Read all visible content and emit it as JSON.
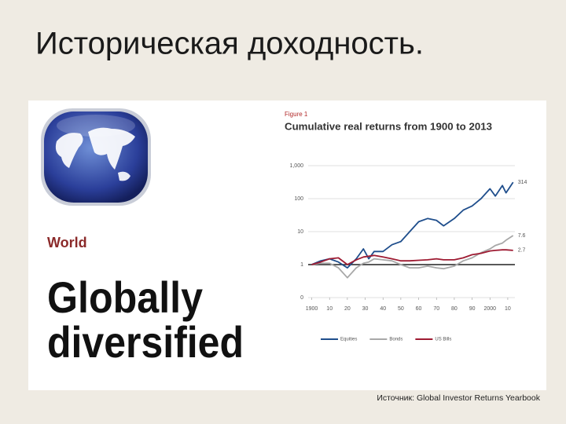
{
  "slide_title": "Историческая доходность.",
  "source": "Источник: Global Investor Returns Yearbook",
  "panel": {
    "region": "World",
    "lines": [
      "Globally",
      "diversified"
    ]
  },
  "chart_data": {
    "type": "line",
    "figure_label": "Figure 1",
    "title": "Cumulative real returns from 1900 to 2013",
    "log_scale": true,
    "grid": true,
    "legend": "bottom",
    "xlim": [
      1898,
      2014
    ],
    "xticks": [
      {
        "value": 1900,
        "label": "1900"
      },
      {
        "value": 1910,
        "label": "10"
      },
      {
        "value": 1920,
        "label": "20"
      },
      {
        "value": 1930,
        "label": "30"
      },
      {
        "value": 1940,
        "label": "40"
      },
      {
        "value": 1950,
        "label": "50"
      },
      {
        "value": 1960,
        "label": "60"
      },
      {
        "value": 1970,
        "label": "70"
      },
      {
        "value": 1980,
        "label": "80"
      },
      {
        "value": 1990,
        "label": "90"
      },
      {
        "value": 2000,
        "label": "2000"
      },
      {
        "value": 2010,
        "label": "10"
      }
    ],
    "ylim": [
      0.1,
      1000
    ],
    "yticks": [
      {
        "value": 0.1,
        "label": "0"
      },
      1,
      10,
      100,
      {
        "value": 1000,
        "label": "1,000"
      }
    ],
    "x": [
      1900,
      1905,
      1910,
      1915,
      1920,
      1925,
      1929,
      1932,
      1935,
      1940,
      1945,
      1950,
      1955,
      1960,
      1965,
      1970,
      1974,
      1980,
      1985,
      1990,
      1995,
      2000,
      2003,
      2007,
      2009,
      2013
    ],
    "series": [
      {
        "name": "Equities",
        "color": "#1f4e8c",
        "values": [
          1,
          1.3,
          1.5,
          1.2,
          0.8,
          1.5,
          3,
          1.5,
          2.5,
          2.5,
          4,
          5,
          10,
          20,
          25,
          22,
          15,
          25,
          45,
          60,
          100,
          200,
          120,
          250,
          150,
          314
        ],
        "value_labels": [
          null,
          null,
          null,
          null,
          null,
          null,
          null,
          null,
          null,
          null,
          null,
          null,
          null,
          null,
          null,
          null,
          null,
          null,
          null,
          null,
          null,
          null,
          null,
          null,
          null,
          "314"
        ]
      },
      {
        "name": "Bonds",
        "color": "#a8a8a8",
        "values": [
          1,
          1.1,
          1.1,
          0.8,
          0.4,
          0.8,
          1.1,
          1.2,
          1.5,
          1.4,
          1.3,
          1.0,
          0.8,
          0.8,
          0.9,
          0.8,
          0.75,
          0.9,
          1.3,
          1.6,
          2.3,
          3,
          3.8,
          4.5,
          5.5,
          7.6
        ],
        "value_labels": [
          null,
          null,
          null,
          null,
          null,
          null,
          null,
          null,
          null,
          null,
          null,
          null,
          null,
          null,
          null,
          null,
          null,
          null,
          null,
          null,
          null,
          null,
          null,
          null,
          null,
          "7.6"
        ]
      },
      {
        "name": "US Bills",
        "color": "#9e1b32",
        "values": [
          1,
          1.2,
          1.5,
          1.6,
          1.0,
          1.4,
          1.7,
          1.8,
          1.9,
          1.7,
          1.5,
          1.3,
          1.3,
          1.35,
          1.4,
          1.5,
          1.4,
          1.4,
          1.6,
          2.0,
          2.2,
          2.6,
          2.7,
          2.8,
          2.8,
          2.7
        ],
        "value_labels": [
          null,
          null,
          null,
          null,
          null,
          null,
          null,
          null,
          null,
          null,
          null,
          null,
          null,
          null,
          null,
          null,
          null,
          null,
          null,
          null,
          null,
          null,
          null,
          null,
          null,
          "2.7"
        ]
      }
    ]
  }
}
